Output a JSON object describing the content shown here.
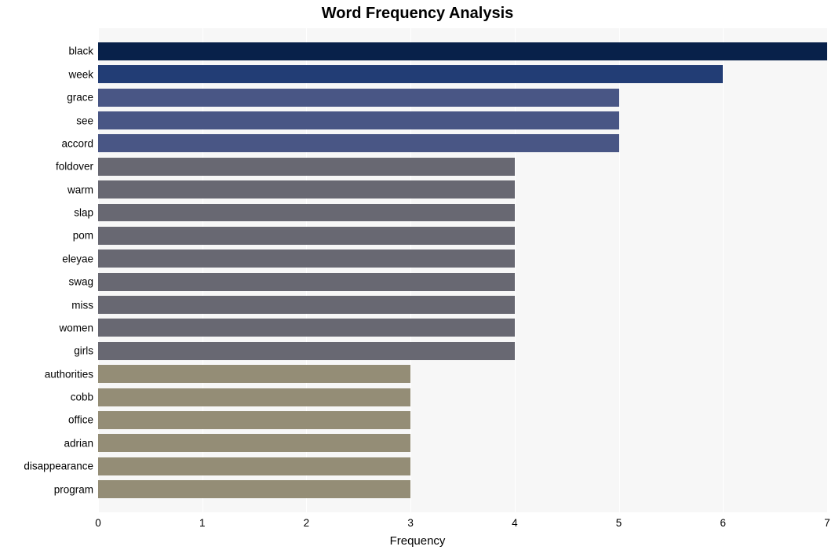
{
  "chart": {
    "type": "bar-horizontal",
    "title": "Word Frequency Analysis",
    "title_fontsize": 20,
    "title_fontweight": 700,
    "xlabel": "Frequency",
    "xlabel_fontsize": 15,
    "tick_fontsize": 13.5,
    "background_color": "#ffffff",
    "plot_background_color": "#f7f7f7",
    "grid_color": "#ffffff",
    "xlim": [
      0,
      7
    ],
    "xticks": [
      0,
      1,
      2,
      3,
      4,
      5,
      6,
      7
    ],
    "bar_height_ratio": 0.78,
    "categories": [
      "black",
      "week",
      "grace",
      "see",
      "accord",
      "foldover",
      "warm",
      "slap",
      "pom",
      "eleyae",
      "swag",
      "miss",
      "women",
      "girls",
      "authorities",
      "cobb",
      "office",
      "adrian",
      "disappearance",
      "program"
    ],
    "values": [
      7,
      6,
      5,
      5,
      5,
      4,
      4,
      4,
      4,
      4,
      4,
      4,
      4,
      4,
      3,
      3,
      3,
      3,
      3,
      3
    ],
    "bar_colors": [
      "#08214a",
      "#223d75",
      "#495685",
      "#495685",
      "#495685",
      "#686872",
      "#686872",
      "#686872",
      "#686872",
      "#686872",
      "#686872",
      "#686872",
      "#686872",
      "#686872",
      "#948d76",
      "#948d76",
      "#948d76",
      "#948d76",
      "#948d76",
      "#948d76"
    ],
    "xtick_labels": [
      "0",
      "1",
      "2",
      "3",
      "4",
      "5",
      "6",
      "7"
    ]
  }
}
